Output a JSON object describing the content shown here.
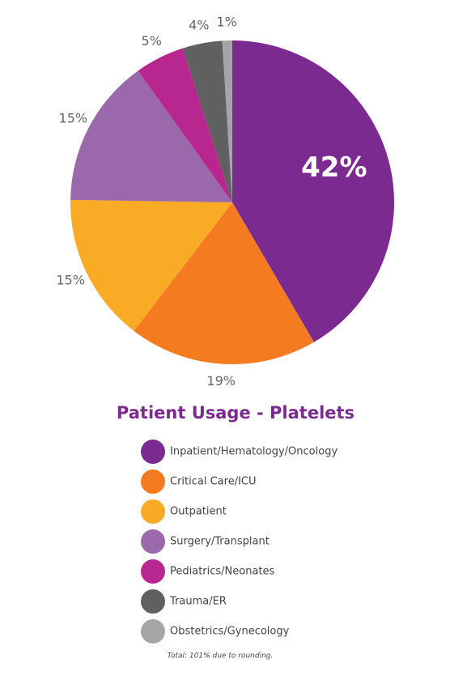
{
  "chart_data": {
    "type": "pie",
    "title": "Patient Usage - Platelets",
    "categories": [
      "Inpatient/Hematology/Oncology",
      "Critical Care/ICU",
      "Outpatient",
      "Surgery/Transplant",
      "Pediatrics/Neonates",
      "Trauma/ER",
      "Obstetrics/Gynecology"
    ],
    "values": [
      42,
      19,
      15,
      15,
      5,
      4,
      1
    ],
    "value_labels": [
      "42%",
      "19%",
      "15%",
      "15%",
      "5%",
      "4%",
      "1%"
    ],
    "colors": [
      "#7b2a8f",
      "#f47b20",
      "#f9ab25",
      "#9b68ab",
      "#b8268f",
      "#606060",
      "#a5a5a5"
    ],
    "note": "Total: 101% due to rounding."
  }
}
